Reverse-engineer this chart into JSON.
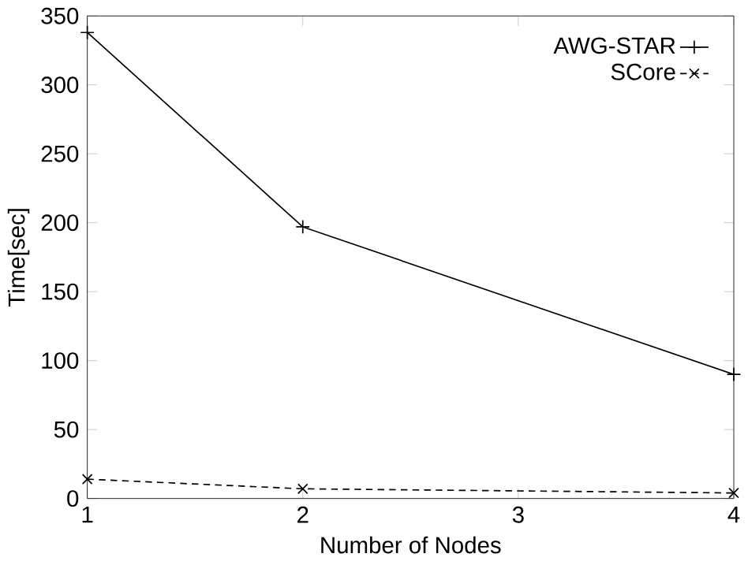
{
  "chart_data": {
    "type": "line",
    "xlabel": "Number of Nodes",
    "ylabel": "Time[sec]",
    "xlim": [
      1,
      4
    ],
    "xticks": [
      1,
      2,
      3,
      4
    ],
    "ylim": [
      0,
      350
    ],
    "yticks": [
      0,
      50,
      100,
      150,
      200,
      250,
      300,
      350
    ],
    "legend": "top right",
    "grid": false,
    "series": [
      {
        "name": "AWG-STAR",
        "color": "#000000",
        "x": [
          1,
          2,
          4
        ],
        "values": [
          338,
          197,
          90
        ],
        "marker": "plus",
        "line_style": "solid"
      },
      {
        "name": "SCore",
        "color": "#000000",
        "x": [
          1,
          2,
          4
        ],
        "values": [
          14,
          7,
          4
        ],
        "marker": "cross",
        "line_style": "dashed"
      }
    ]
  }
}
